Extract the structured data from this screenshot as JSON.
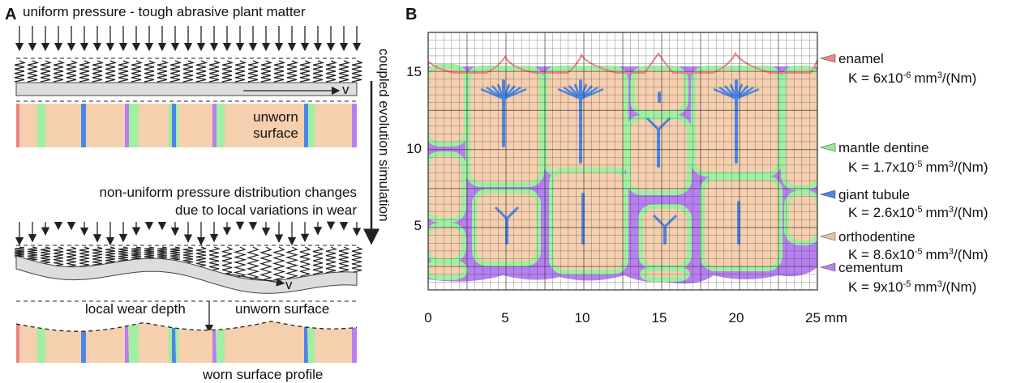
{
  "panel_a": {
    "label": "A",
    "title": "uniform pressure - tough abrasive plant matter",
    "velocity_top": "v",
    "unworn_top": [
      "unworn",
      "surface"
    ],
    "nonuniform": [
      "non-uniform pressure distribution changes",
      "due to local variations in wear"
    ],
    "velocity_bottom": "v",
    "local_wear_depth": "local wear depth",
    "unworn_bottom": "unworn surface",
    "worn_profile": "worn surface profile",
    "process": "coupled evolution simulation"
  },
  "panel_b": {
    "label": "B",
    "x_ticks": [
      0,
      5,
      10,
      15,
      20,
      {
        "value": 25,
        "label": "25 mm"
      }
    ],
    "y_ticks": [
      5,
      10,
      15
    ],
    "materials": [
      {
        "name": "enamel",
        "color": "#f08282",
        "k": {
          "base": "K = 6x10",
          "exp": "-6",
          "unit": "mm",
          "unit_exp": "3",
          "tail": "/(Nm)"
        }
      },
      {
        "name": "mantle dentine",
        "color": "#8ff08f",
        "k": {
          "base": "K = 1.7x10",
          "exp": "-5",
          "unit": "mm",
          "unit_exp": "3",
          "tail": "/(Nm)"
        }
      },
      {
        "name": "giant tubule",
        "color": "#4a86e8",
        "k": {
          "base": "K = 2.6x10",
          "exp": "-5",
          "unit": "mm",
          "unit_exp": "3",
          "tail": "/(Nm)"
        }
      },
      {
        "name": "orthodentine",
        "color": "#e8c4a6",
        "k": {
          "base": "K = 8.6x10",
          "exp": "-5",
          "unit": "mm",
          "unit_exp": "3",
          "tail": "/(Nm)"
        }
      },
      {
        "name": "cementum",
        "color": "#b680f0",
        "k": {
          "base": "K = 9x10",
          "exp": "-5",
          "unit": "mm",
          "unit_exp": "3",
          "tail": "/(Nm)"
        }
      }
    ]
  }
}
